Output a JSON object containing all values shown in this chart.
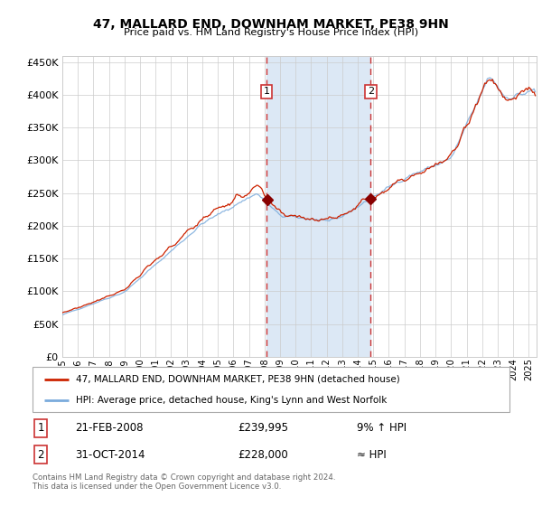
{
  "title": "47, MALLARD END, DOWNHAM MARKET, PE38 9HN",
  "subtitle": "Price paid vs. HM Land Registry's House Price Index (HPI)",
  "legend_line1": "47, MALLARD END, DOWNHAM MARKET, PE38 9HN (detached house)",
  "legend_line2": "HPI: Average price, detached house, King's Lynn and West Norfolk",
  "annotation_footer": "Contains HM Land Registry data © Crown copyright and database right 2024.\nThis data is licensed under the Open Government Licence v3.0.",
  "transaction1_date": "21-FEB-2008",
  "transaction1_price": "£239,995",
  "transaction1_hpi": "9% ↑ HPI",
  "transaction2_date": "31-OCT-2014",
  "transaction2_price": "£228,000",
  "transaction2_hpi": "≈ HPI",
  "transaction1_year": 2008.13,
  "transaction2_year": 2014.83,
  "transaction1_value": 239995,
  "transaction2_value": 228000,
  "ylim": [
    0,
    460000
  ],
  "xlim_start": 1995.0,
  "xlim_end": 2025.5,
  "background_color": "#ffffff",
  "hpi_line_color": "#7aabdc",
  "price_line_color": "#cc2200",
  "marker_color": "#880000",
  "vline_color": "#cc3333",
  "shade_color": "#dce8f5",
  "grid_color": "#cccccc",
  "box_color": "#cc3333"
}
